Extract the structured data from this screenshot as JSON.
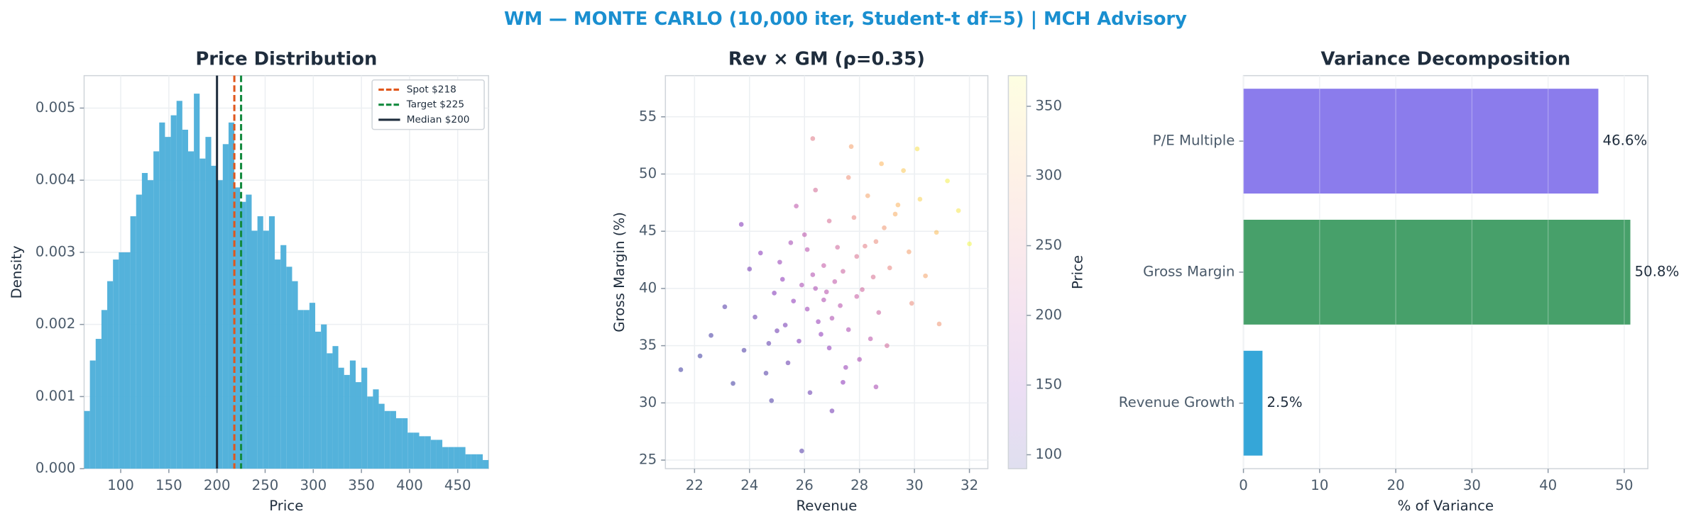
{
  "title": "WM — MONTE CARLO (10,000 iter, Student-t df=5) | MCH Advisory",
  "chart_data": [
    {
      "type": "histogram",
      "title": "Price Distribution",
      "xlabel": "Price",
      "ylabel": "Density",
      "color": "#4baed9",
      "grid": true,
      "legend": "upper right",
      "bins": [
        62,
        68,
        74,
        80,
        86,
        92,
        98,
        104,
        110,
        116,
        122,
        128,
        134,
        140,
        146,
        152,
        158,
        164,
        170,
        176,
        182,
        188,
        194,
        200,
        206,
        212,
        218,
        224,
        230,
        236,
        242,
        248,
        254,
        260,
        266,
        272,
        278,
        284,
        290,
        296,
        302,
        308,
        314,
        320,
        326,
        332,
        338,
        344,
        350,
        356,
        362,
        368,
        374,
        380,
        386,
        392,
        398,
        404,
        410,
        416,
        422,
        428,
        434,
        440,
        446,
        452,
        458,
        464,
        470,
        476,
        482
      ],
      "values": [
        0.0008,
        0.0015,
        0.0018,
        0.0022,
        0.0026,
        0.0029,
        0.003,
        0.003,
        0.0035,
        0.0038,
        0.0041,
        0.004,
        0.0044,
        0.0048,
        0.0046,
        0.0049,
        0.0051,
        0.0047,
        0.0044,
        0.0052,
        0.0043,
        0.0046,
        0.0042,
        0.004,
        0.0045,
        0.0048,
        0.0039,
        0.0037,
        0.0038,
        0.0033,
        0.0035,
        0.0033,
        0.0035,
        0.0029,
        0.0031,
        0.0028,
        0.0026,
        0.0022,
        0.0022,
        0.0023,
        0.0019,
        0.002,
        0.0016,
        0.0017,
        0.0014,
        0.0013,
        0.0015,
        0.0012,
        0.0014,
        0.001,
        0.0011,
        0.0009,
        0.0008,
        0.0008,
        0.0007,
        0.0007,
        0.0005,
        0.0005,
        0.00045,
        0.00045,
        0.0004,
        0.0004,
        0.0003,
        0.0003,
        0.0003,
        0.0003,
        0.0002,
        0.0002,
        0.0002,
        0.00012
      ],
      "xlim": [
        62,
        482
      ],
      "xticks": [
        100,
        150,
        200,
        250,
        300,
        350,
        400,
        450
      ],
      "ylim": [
        0,
        0.00545
      ],
      "yticks": [
        {
          "value": 0,
          "label": "0.000"
        },
        {
          "value": 0.001,
          "label": "0.001"
        },
        {
          "value": 0.002,
          "label": "0.002"
        },
        {
          "value": 0.003,
          "label": "0.003"
        },
        {
          "value": 0.004,
          "label": "0.004"
        },
        {
          "value": 0.005,
          "label": "0.005"
        }
      ],
      "lines": [
        {
          "name": "Spot $218",
          "value": 218,
          "color": "#e0561b",
          "dashed": true
        },
        {
          "name": "Target $225",
          "value": 225,
          "color": "#138a3e",
          "dashed": true
        },
        {
          "name": "Median $200",
          "value": 200,
          "color": "#1f2d3d",
          "dashed": false
        }
      ]
    },
    {
      "type": "scatter",
      "title": "Rev × GM (ρ=0.35)",
      "xlabel": "Revenue",
      "ylabel": "Gross Margin (%)",
      "colorbar_label": "Price",
      "grid": true,
      "x": [
        26.1,
        27.4,
        25.3,
        28.6,
        26.8,
        24.7,
        29.3,
        27.9,
        25.9,
        26.5,
        28.1,
        23.8,
        30.2,
        27.2,
        25.6,
        26.3,
        28.9,
        24.2,
        27.6,
        29.8,
        26.9,
        25.1,
        28.3,
        27.1,
        23.4,
        31.2,
        26.0,
        28.7,
        25.4,
        27.8,
        24.9,
        29.6,
        26.6,
        27.3,
        22.6,
        30.8,
        28.0,
        25.7,
        26.2,
        29.1,
        24.4,
        27.7,
        26.7,
        28.4,
        25.0,
        31.6,
        23.1,
        27.0,
        29.9,
        26.4,
        24.0,
        28.8,
        27.5,
        25.5,
        30.4,
        26.9,
        22.2,
        28.2,
        25.8,
        27.4,
        29.4,
        24.6,
        26.3,
        30.9,
        27.9,
        25.2,
        28.5,
        23.7,
        26.1,
        32.0,
        27.0,
        24.8,
        29.0,
        26.7,
        28.6,
        21.5,
        27.6,
        25.9,
        30.1,
        26.4
      ],
      "y": [
        38.2,
        41.5,
        36.8,
        44.1,
        39.7,
        35.2,
        46.5,
        42.8,
        40.3,
        37.1,
        39.9,
        34.6,
        47.8,
        43.6,
        38.9,
        41.2,
        45.3,
        37.5,
        36.4,
        43.2,
        34.8,
        42.3,
        48.1,
        40.6,
        31.7,
        49.4,
        44.7,
        37.9,
        33.5,
        46.2,
        39.6,
        50.3,
        36.0,
        38.5,
        35.9,
        44.9,
        33.8,
        47.2,
        30.9,
        41.8,
        43.1,
        52.4,
        42.0,
        35.6,
        36.3,
        46.8,
        38.4,
        29.3,
        38.7,
        48.6,
        41.7,
        50.9,
        33.1,
        44.0,
        41.1,
        45.9,
        34.1,
        43.7,
        35.4,
        31.8,
        47.3,
        32.6,
        53.1,
        36.9,
        39.3,
        40.8,
        41.0,
        45.6,
        43.4,
        43.9,
        37.4,
        30.2,
        35.0,
        39.0,
        31.4,
        32.9,
        49.7,
        25.8,
        52.2,
        40.0
      ],
      "c": [
        165,
        215,
        130,
        268,
        190,
        112,
        305,
        238,
        175,
        158,
        220,
        98,
        338,
        222,
        152,
        185,
        282,
        118,
        178,
        290,
        150,
        160,
        295,
        200,
        92,
        362,
        195,
        215,
        118,
        262,
        140,
        330,
        150,
        190,
        95,
        320,
        175,
        198,
        120,
        262,
        145,
        292,
        205,
        195,
        122,
        355,
        105,
        128,
        268,
        228,
        128,
        315,
        160,
        172,
        295,
        232,
        90,
        252,
        138,
        148,
        312,
        102,
        248,
        280,
        210,
        150,
        235,
        140,
        190,
        370,
        180,
        100,
        225,
        182,
        175,
        88,
        275,
        105,
        350,
        178
      ],
      "xlim": [
        20.94,
        32.67
      ],
      "xticks": [
        22,
        24,
        26,
        28,
        30,
        32
      ],
      "ylim": [
        24.25,
        58.6
      ],
      "yticks": [
        25,
        30,
        35,
        40,
        45,
        50,
        55
      ],
      "clim": [
        90,
        372
      ],
      "cticks": [
        100,
        150,
        200,
        250,
        300,
        350
      ],
      "colormap": "plasma"
    },
    {
      "type": "barh",
      "title": "Variance Decomposition",
      "xlabel": "% of Variance",
      "grid": true,
      "categories": [
        "P/E Multiple",
        "Gross Margin",
        "Revenue Growth"
      ],
      "values": [
        46.6,
        50.8,
        2.5
      ],
      "value_labels": [
        "46.6%",
        "50.8%",
        "2.5%"
      ],
      "colors": [
        "#8b7cec",
        "#47a06a",
        "#35a6d8"
      ],
      "xlim": [
        0,
        53.1
      ],
      "xticks": [
        0,
        10,
        20,
        30,
        40,
        50
      ]
    }
  ]
}
